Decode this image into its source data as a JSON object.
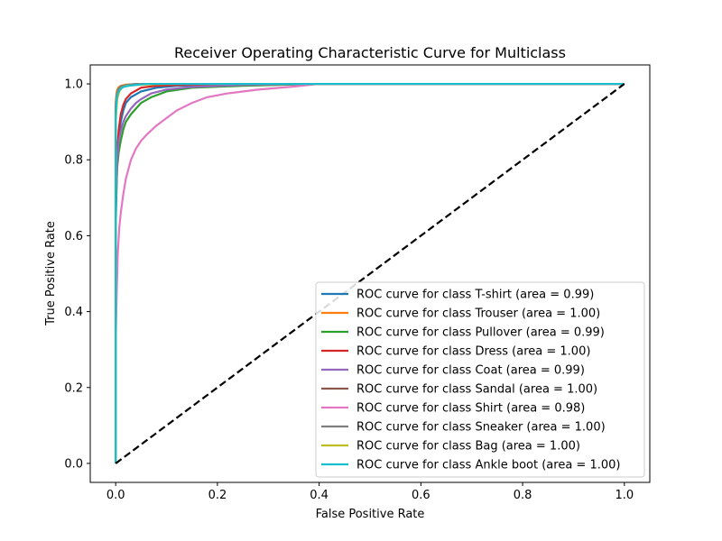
{
  "chart_data": {
    "type": "line",
    "title": "Receiver Operating Characteristic Curve for Multiclass",
    "xlabel": "False Positive Rate",
    "ylabel": "True Positive Rate",
    "xlim": [
      -0.05,
      1.05
    ],
    "ylim": [
      -0.05,
      1.05
    ],
    "xticks": [
      "0.0",
      "0.2",
      "0.4",
      "0.6",
      "0.8",
      "1.0"
    ],
    "yticks": [
      "0.0",
      "0.2",
      "0.4",
      "0.6",
      "0.8",
      "1.0"
    ],
    "grid": false,
    "legend_position": "lower-right",
    "diagonal": {
      "x": [
        0,
        1
      ],
      "y": [
        0,
        1
      ],
      "color": "#000000",
      "style": "dashed"
    },
    "series": [
      {
        "name": "ROC curve for class T-shirt (area = 0.99)",
        "color": "#1f77b4",
        "x": [
          0,
          0.0,
          0.003,
          0.006,
          0.01,
          0.015,
          0.02,
          0.03,
          0.05,
          0.08,
          0.12,
          0.2,
          0.4,
          1.0
        ],
        "y": [
          0,
          0.62,
          0.8,
          0.86,
          0.9,
          0.93,
          0.95,
          0.965,
          0.98,
          0.99,
          0.995,
          0.998,
          1.0,
          1.0
        ]
      },
      {
        "name": "ROC curve for class Trouser (area = 1.00)",
        "color": "#ff7f0e",
        "x": [
          0,
          0.0,
          0.002,
          0.005,
          0.01,
          0.02,
          0.05,
          1.0
        ],
        "y": [
          0,
          0.95,
          0.98,
          0.99,
          0.995,
          0.998,
          1.0,
          1.0
        ]
      },
      {
        "name": "ROC curve for class Pullover (area = 0.99)",
        "color": "#2ca02c",
        "x": [
          0,
          0.0,
          0.003,
          0.006,
          0.01,
          0.015,
          0.02,
          0.03,
          0.04,
          0.05,
          0.07,
          0.1,
          0.15,
          0.25,
          0.4,
          1.0
        ],
        "y": [
          0,
          0.68,
          0.78,
          0.82,
          0.85,
          0.88,
          0.9,
          0.92,
          0.935,
          0.95,
          0.965,
          0.98,
          0.99,
          0.995,
          1.0,
          1.0
        ]
      },
      {
        "name": "ROC curve for class Dress (area = 1.00)",
        "color": "#d62728",
        "x": [
          0,
          0.0,
          0.003,
          0.006,
          0.01,
          0.015,
          0.02,
          0.03,
          0.05,
          0.08,
          0.15,
          0.3,
          1.0
        ],
        "y": [
          0,
          0.72,
          0.82,
          0.88,
          0.92,
          0.945,
          0.96,
          0.975,
          0.99,
          0.995,
          0.998,
          1.0,
          1.0
        ]
      },
      {
        "name": "ROC curve for class Coat (area = 0.99)",
        "color": "#9467bd",
        "x": [
          0,
          0.0,
          0.003,
          0.006,
          0.01,
          0.015,
          0.02,
          0.03,
          0.04,
          0.05,
          0.07,
          0.1,
          0.15,
          0.25,
          0.4,
          1.0
        ],
        "y": [
          0,
          0.7,
          0.8,
          0.85,
          0.875,
          0.9,
          0.915,
          0.935,
          0.95,
          0.96,
          0.975,
          0.985,
          0.992,
          0.997,
          1.0,
          1.0
        ]
      },
      {
        "name": "ROC curve for class Sandal (area = 1.00)",
        "color": "#8c564b",
        "x": [
          0,
          0.0,
          0.002,
          0.005,
          0.01,
          0.02,
          0.04,
          1.0
        ],
        "y": [
          0,
          0.94,
          0.97,
          0.985,
          0.993,
          0.997,
          1.0,
          1.0
        ]
      },
      {
        "name": "ROC curve for class Shirt (area = 0.98)",
        "color": "#e377c2",
        "x": [
          0,
          0.0,
          0.002,
          0.004,
          0.007,
          0.01,
          0.015,
          0.02,
          0.03,
          0.04,
          0.05,
          0.06,
          0.08,
          0.1,
          0.12,
          0.15,
          0.18,
          0.22,
          0.28,
          0.35,
          0.4,
          1.0
        ],
        "y": [
          0,
          0.32,
          0.45,
          0.55,
          0.62,
          0.66,
          0.71,
          0.75,
          0.8,
          0.83,
          0.85,
          0.865,
          0.89,
          0.91,
          0.93,
          0.95,
          0.965,
          0.975,
          0.985,
          0.993,
          1.0,
          1.0
        ]
      },
      {
        "name": "ROC curve for class Sneaker (area = 1.00)",
        "color": "#7f7f7f",
        "x": [
          0,
          0.0,
          0.002,
          0.005,
          0.01,
          0.02,
          0.04,
          1.0
        ],
        "y": [
          0,
          0.93,
          0.97,
          0.985,
          0.993,
          0.997,
          1.0,
          1.0
        ]
      },
      {
        "name": "ROC curve for class Bag (area = 1.00)",
        "color": "#bcbd22",
        "x": [
          0,
          0.0,
          0.003,
          0.007,
          0.012,
          0.02,
          0.05,
          0.1,
          1.0
        ],
        "y": [
          0,
          0.9,
          0.96,
          0.98,
          0.99,
          0.995,
          0.998,
          1.0,
          1.0
        ]
      },
      {
        "name": "ROC curve for class Ankle boot (area = 1.00)",
        "color": "#17becf",
        "x": [
          0,
          0.0,
          0.002,
          0.004,
          0.008,
          0.015,
          0.03,
          0.06,
          1.0
        ],
        "y": [
          0,
          0.92,
          0.96,
          0.975,
          0.985,
          0.992,
          0.996,
          1.0,
          1.0
        ]
      }
    ]
  }
}
